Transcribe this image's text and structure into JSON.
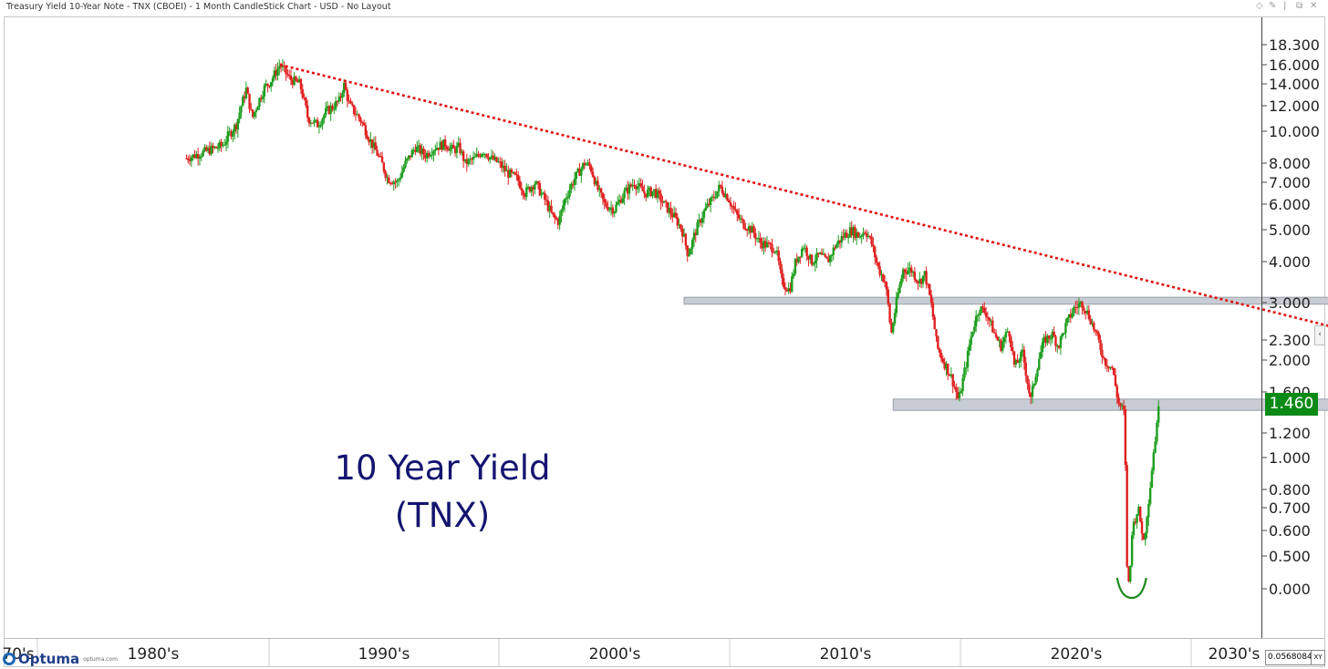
{
  "window": {
    "title": "Treasury Yield 10-Year Note - TNX (CBOEI) - 1 Month CandleStick Chart - USD - No Layout",
    "controls": [
      "◇",
      "✎",
      "|",
      "⧉",
      "✕"
    ]
  },
  "branding": {
    "logo_text": "Optuma",
    "url": "optuma.com"
  },
  "scale_box": {
    "value": "0.0568084",
    "mode": "XY"
  },
  "price_label": {
    "value": "1.460",
    "color": "#0b8a16"
  },
  "chart_data": {
    "type": "candlestick",
    "title": "10 Year Yield",
    "subtitle": "(TNX)",
    "timeframe": "1 Month",
    "xlabel": "",
    "ylabel": "",
    "xlim": [
      1970,
      2033
    ],
    "x_ticks": [
      "70's",
      "1980's",
      "1990's",
      "2000's",
      "2010's",
      "2020's",
      "2030's"
    ],
    "y_ticks": [
      "18.300",
      "16.000",
      "14.000",
      "12.000",
      "10.000",
      "8.000",
      "7.000",
      "6.000",
      "5.000",
      "4.000",
      "3.000",
      "2.300",
      "2.000",
      "1.600",
      "1.200",
      "1.000",
      "0.800",
      "0.700",
      "0.600",
      "0.500",
      "0.000"
    ],
    "y_tick_values": [
      18.3,
      16.0,
      14.0,
      12.0,
      10.0,
      8.0,
      7.0,
      6.0,
      5.0,
      4.0,
      3.0,
      2.3,
      2.0,
      1.6,
      1.2,
      1.0,
      0.8,
      0.7,
      0.6,
      0.5,
      0.0
    ],
    "last_value": 1.46,
    "up_color": "#1e9e1e",
    "down_color": "#e02020",
    "grid": false,
    "price_path": [
      [
        1979.0,
        8.3
      ],
      [
        1980.8,
        9.1
      ],
      [
        1981.5,
        10.5
      ],
      [
        1982.0,
        13.5
      ],
      [
        1982.3,
        11.0
      ],
      [
        1982.9,
        13.6
      ],
      [
        1983.2,
        14.2
      ],
      [
        1983.7,
        16.0
      ],
      [
        1984.2,
        14.5
      ],
      [
        1984.7,
        14.0
      ],
      [
        1985.1,
        11.0
      ],
      [
        1985.6,
        10.5
      ],
      [
        1986.0,
        11.5
      ],
      [
        1986.4,
        12.0
      ],
      [
        1986.7,
        12.5
      ],
      [
        1986.9,
        14.0
      ],
      [
        1987.2,
        12.0
      ],
      [
        1987.7,
        11.0
      ],
      [
        1988.2,
        9.5
      ],
      [
        1988.7,
        8.3
      ],
      [
        1989.1,
        7.2
      ],
      [
        1989.6,
        7.0
      ],
      [
        1990.0,
        8.0
      ],
      [
        1990.5,
        9.0
      ],
      [
        1991.0,
        8.5
      ],
      [
        1991.5,
        9.0
      ],
      [
        1992.0,
        9.2
      ],
      [
        1992.4,
        8.8
      ],
      [
        1992.7,
        9.0
      ],
      [
        1993.0,
        8.0
      ],
      [
        1993.5,
        8.3
      ],
      [
        1993.9,
        8.8
      ],
      [
        1994.3,
        8.3
      ],
      [
        1994.7,
        8.0
      ],
      [
        1995.1,
        7.5
      ],
      [
        1995.6,
        7.2
      ],
      [
        1996.0,
        6.5
      ],
      [
        1996.5,
        7.0
      ],
      [
        1997.0,
        6.2
      ],
      [
        1997.4,
        5.5
      ],
      [
        1997.7,
        5.3
      ],
      [
        1998.0,
        6.2
      ],
      [
        1998.5,
        7.2
      ],
      [
        1999.0,
        8.0
      ],
      [
        1999.3,
        7.8
      ],
      [
        1999.6,
        6.8
      ],
      [
        2000.0,
        6.0
      ],
      [
        2000.5,
        5.8
      ],
      [
        2001.0,
        6.5
      ],
      [
        2001.5,
        7.0
      ],
      [
        2002.0,
        6.5
      ],
      [
        2002.5,
        6.6
      ],
      [
        2003.0,
        6.0
      ],
      [
        2003.5,
        5.5
      ],
      [
        2003.9,
        5.0
      ],
      [
        2004.2,
        4.2
      ],
      [
        2004.6,
        5.0
      ],
      [
        2005.0,
        5.7
      ],
      [
        2005.4,
        6.2
      ],
      [
        2005.8,
        6.8
      ],
      [
        2006.2,
        6.3
      ],
      [
        2006.6,
        5.6
      ],
      [
        2007.0,
        5.2
      ],
      [
        2007.4,
        5.0
      ],
      [
        2007.8,
        4.6
      ],
      [
        2008.2,
        4.5
      ],
      [
        2008.6,
        4.4
      ],
      [
        2008.9,
        3.5
      ],
      [
        2009.3,
        3.3
      ],
      [
        2009.6,
        4.0
      ],
      [
        2010.0,
        4.5
      ],
      [
        2010.4,
        4.0
      ],
      [
        2010.8,
        4.2
      ],
      [
        2011.2,
        4.0
      ],
      [
        2011.6,
        4.5
      ],
      [
        2012.0,
        4.8
      ],
      [
        2012.4,
        5.0
      ],
      [
        2012.8,
        4.8
      ],
      [
        2013.1,
        5.0
      ],
      [
        2013.4,
        4.6
      ],
      [
        2013.7,
        3.9
      ],
      [
        2014.1,
        3.5
      ],
      [
        2014.4,
        2.4
      ],
      [
        2014.7,
        3.1
      ],
      [
        2015.0,
        3.8
      ],
      [
        2015.4,
        3.8
      ],
      [
        2015.8,
        3.5
      ],
      [
        2016.1,
        3.7
      ],
      [
        2016.4,
        3.0
      ],
      [
        2016.7,
        2.2
      ],
      [
        2017.0,
        2.0
      ],
      [
        2017.4,
        1.8
      ],
      [
        2017.8,
        1.5
      ],
      [
        2018.2,
        2.0
      ],
      [
        2018.5,
        2.5
      ],
      [
        2018.8,
        2.9
      ],
      [
        2019.2,
        2.8
      ],
      [
        2019.6,
        2.4
      ],
      [
        2019.9,
        2.2
      ],
      [
        2020.3,
        2.5
      ],
      [
        2020.6,
        1.9
      ],
      [
        2021.0,
        2.1
      ],
      [
        2021.4,
        1.5
      ],
      [
        2021.8,
        2.0
      ],
      [
        2022.1,
        2.3
      ],
      [
        2022.5,
        2.4
      ],
      [
        2022.8,
        2.2
      ],
      [
        2023.2,
        2.6
      ],
      [
        2023.6,
        2.9
      ],
      [
        2024.0,
        3.0
      ],
      [
        2024.4,
        2.7
      ],
      [
        2024.8,
        2.3
      ],
      [
        2025.1,
        2.0
      ],
      [
        2025.5,
        1.9
      ],
      [
        2025.8,
        1.5
      ],
      [
        2026.1,
        1.4
      ],
      [
        2026.3,
        0.0
      ],
      [
        2026.5,
        0.6
      ],
      [
        2026.8,
        0.7
      ],
      [
        2027.1,
        0.55
      ],
      [
        2027.4,
        0.8
      ],
      [
        2027.7,
        1.2
      ],
      [
        2027.9,
        1.46
      ]
    ],
    "trendline": {
      "color": "#e01010",
      "style": "dotted",
      "points": [
        [
          1983.7,
          16.0
        ],
        [
          2040.0,
          2.5
        ]
      ]
    },
    "support_bands": [
      {
        "x_range": [
          2004.0,
          2046.0
        ],
        "y_range": [
          2.97,
          3.13
        ],
        "color": "#c8ccd4"
      },
      {
        "x_range": [
          2014.5,
          2046.0
        ],
        "y_range": [
          1.42,
          1.53
        ],
        "color": "#c8ccd4"
      }
    ],
    "annotation": {
      "shape": "arc",
      "x": 2026.3,
      "y": 0.0,
      "color": "#1a8a1a"
    }
  }
}
